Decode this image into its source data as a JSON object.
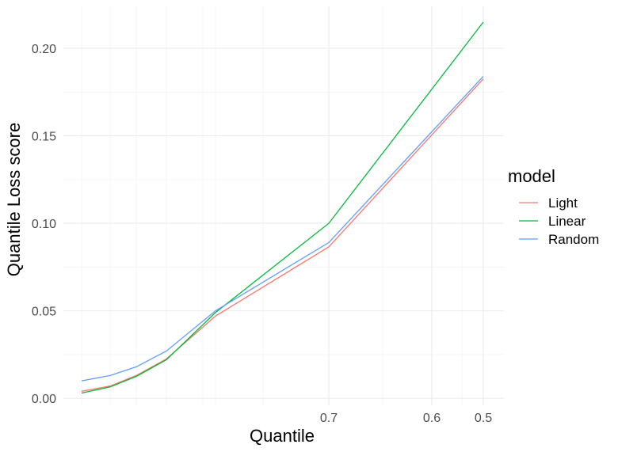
{
  "chart_data": {
    "type": "line",
    "title": "",
    "xlabel": "Quantile",
    "ylabel": "Quantile Loss score",
    "x": [
      0.99,
      0.975,
      0.95,
      0.9,
      0.85,
      0.8,
      0.75,
      0.7,
      0.65,
      0.6,
      0.55,
      0.5
    ],
    "x_reversed": true,
    "x_tick_labels": [
      "0.7",
      "0.6",
      "0.5"
    ],
    "x_tick_values": [
      0.7,
      0.6,
      0.5
    ],
    "y_tick_labels": [
      "0.00",
      "0.05",
      "0.10",
      "0.15",
      "0.20"
    ],
    "y_tick_values": [
      0,
      0.05,
      0.1,
      0.15,
      0.2
    ],
    "ylim": [
      -0.004,
      0.224
    ],
    "grid": true,
    "legend": {
      "title": "model",
      "placement": "right"
    },
    "series": [
      {
        "name": "Light",
        "color": "#F8766D",
        "x": [
          0.99,
          0.975,
          0.95,
          0.9,
          0.8,
          0.7,
          0.5
        ],
        "values": [
          0.004,
          0.007,
          0.013,
          0.0225,
          0.047,
          0.0865,
          0.1825
        ]
      },
      {
        "name": "Linear",
        "color": "#00BA38",
        "x": [
          0.99,
          0.975,
          0.95,
          0.9,
          0.8,
          0.7,
          0.5
        ],
        "values": [
          0.003,
          0.0065,
          0.0125,
          0.022,
          0.049,
          0.1,
          0.215
        ]
      },
      {
        "name": "Random",
        "color": "#619CFF",
        "x": [
          0.99,
          0.975,
          0.95,
          0.9,
          0.8,
          0.7,
          0.5
        ],
        "values": [
          0.01,
          0.013,
          0.018,
          0.027,
          0.05,
          0.089,
          0.184
        ]
      }
    ]
  }
}
